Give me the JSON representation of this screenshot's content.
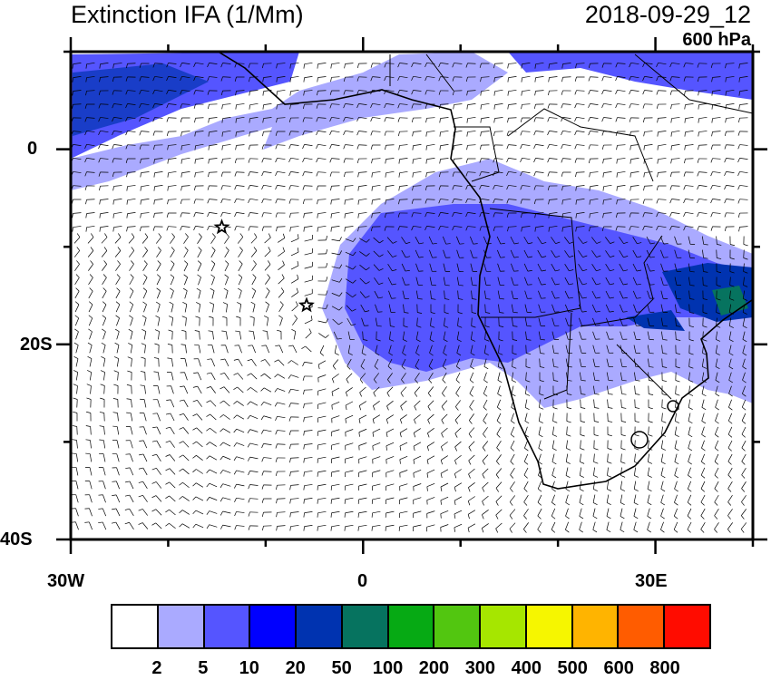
{
  "title": "Extinction IFA (1/Mm)",
  "date": "2018-09-29_12",
  "level": "600 hPa",
  "axes": {
    "lon_labels": [
      "30W",
      "0",
      "30E"
    ],
    "lat_labels": [
      "0",
      "20S",
      "40S"
    ]
  },
  "map_extent": {
    "lon": [
      -30,
      40
    ],
    "lat": [
      -40,
      10
    ]
  },
  "markers": [
    {
      "type": "star",
      "lon": -14.5,
      "lat": -8
    },
    {
      "type": "star",
      "lon": -5.8,
      "lat": -16
    }
  ],
  "legend": {
    "colors": [
      "#ffffff",
      "#aaaaff",
      "#5555ff",
      "#0000ff",
      "#0033b0",
      "#06735f",
      "#06aa14",
      "#52c610",
      "#a6e600",
      "#f6f600",
      "#ffb400",
      "#ff5c00",
      "#ff0c00"
    ],
    "labels": [
      "2",
      "5",
      "10",
      "20",
      "50",
      "100",
      "200",
      "300",
      "400",
      "500",
      "600",
      "800"
    ]
  }
}
